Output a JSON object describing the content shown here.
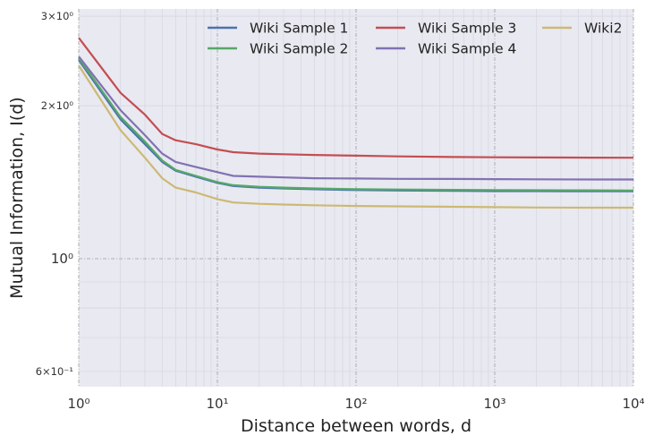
{
  "chart_data": {
    "type": "line",
    "title": "",
    "xlabel": "Distance between words, d",
    "ylabel": "Mutual Information, I(d)",
    "xscale": "log",
    "yscale": "log",
    "xlim": [
      1,
      10000
    ],
    "ylim": [
      0.56,
      3.1
    ],
    "grid": true,
    "legend_position": "top",
    "legend_columns": 3,
    "x_ticks": [
      {
        "value": 1,
        "label": "10⁰"
      },
      {
        "value": 10,
        "label": "10¹"
      },
      {
        "value": 100,
        "label": "10²"
      },
      {
        "value": 1000,
        "label": "10³"
      },
      {
        "value": 10000,
        "label": "10⁴"
      }
    ],
    "y_ticks": [
      {
        "value": 0.6,
        "label": "6×10⁻¹",
        "major": false
      },
      {
        "value": 1,
        "label": "10⁰",
        "major": true
      },
      {
        "value": 2,
        "label": "2×10⁰",
        "major": false
      },
      {
        "value": 3,
        "label": "3×10⁰",
        "major": false
      }
    ],
    "x": [
      1,
      2,
      3,
      4,
      5,
      7,
      10,
      13,
      20,
      30,
      50,
      100,
      200,
      500,
      1000,
      2000,
      5000,
      10000
    ],
    "series": [
      {
        "name": "Wiki Sample 1",
        "color": "#4c72b0",
        "values": [
          2.46,
          1.88,
          1.68,
          1.55,
          1.49,
          1.45,
          1.41,
          1.39,
          1.38,
          1.375,
          1.37,
          1.365,
          1.362,
          1.36,
          1.358,
          1.358,
          1.357,
          1.357
        ]
      },
      {
        "name": "Wiki Sample 2",
        "color": "#55a868",
        "values": [
          2.48,
          1.9,
          1.7,
          1.56,
          1.495,
          1.455,
          1.415,
          1.395,
          1.385,
          1.38,
          1.375,
          1.37,
          1.368,
          1.366,
          1.365,
          1.364,
          1.363,
          1.362
        ]
      },
      {
        "name": "Wiki Sample 3",
        "color": "#c44e52",
        "values": [
          2.72,
          2.12,
          1.92,
          1.76,
          1.71,
          1.68,
          1.64,
          1.62,
          1.61,
          1.605,
          1.6,
          1.595,
          1.59,
          1.585,
          1.583,
          1.582,
          1.581,
          1.58
        ]
      },
      {
        "name": "Wiki Sample 4",
        "color": "#8172b2",
        "values": [
          2.5,
          1.96,
          1.75,
          1.61,
          1.55,
          1.515,
          1.48,
          1.455,
          1.45,
          1.445,
          1.44,
          1.438,
          1.436,
          1.435,
          1.434,
          1.433,
          1.432,
          1.432
        ]
      },
      {
        "name": "Wiki2",
        "color": "#ccb974",
        "values": [
          2.4,
          1.79,
          1.58,
          1.44,
          1.38,
          1.35,
          1.31,
          1.29,
          1.282,
          1.278,
          1.274,
          1.27,
          1.268,
          1.265,
          1.263,
          1.261,
          1.26,
          1.26
        ]
      }
    ]
  }
}
